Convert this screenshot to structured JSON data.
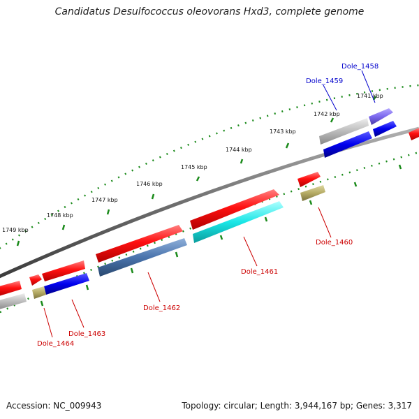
{
  "title": "Candidatus Desulfococcus oleovorans Hxd3, complete genome",
  "footer": {
    "accession": "Accession: NC_009943",
    "summary": "Topology: circular; Length: 3,944,167 bp; Genes: 3,317"
  },
  "scale": {
    "unit": "kbp",
    "ticks": [
      "1741 kbp",
      "1742 kbp",
      "1743 kbp",
      "1744 kbp",
      "1745 kbp",
      "1746 kbp",
      "1747 kbp",
      "1748 kbp",
      "1749 kbp"
    ]
  },
  "genes": {
    "forward_strand_color": "#ff0000",
    "labels": [
      {
        "name": "Dole_1458",
        "color": "#0000cc"
      },
      {
        "name": "Dole_1459",
        "color": "#0000cc"
      },
      {
        "name": "Dole_1460",
        "color": "#cc0000"
      },
      {
        "name": "Dole_1461",
        "color": "#cc0000"
      },
      {
        "name": "Dole_1462",
        "color": "#cc0000"
      },
      {
        "name": "Dole_1463",
        "color": "#cc0000"
      },
      {
        "name": "Dole_1464",
        "color": "#cc0000"
      }
    ],
    "feature_colors": {
      "cds_forward": "#ff1a1a",
      "gray": "#b8b8b8",
      "blue": "#0000ee",
      "violet": "#7b68ee",
      "olive": "#b5ab64",
      "steelblue": "#4a74ad",
      "cyan": "#19e6e6"
    }
  }
}
